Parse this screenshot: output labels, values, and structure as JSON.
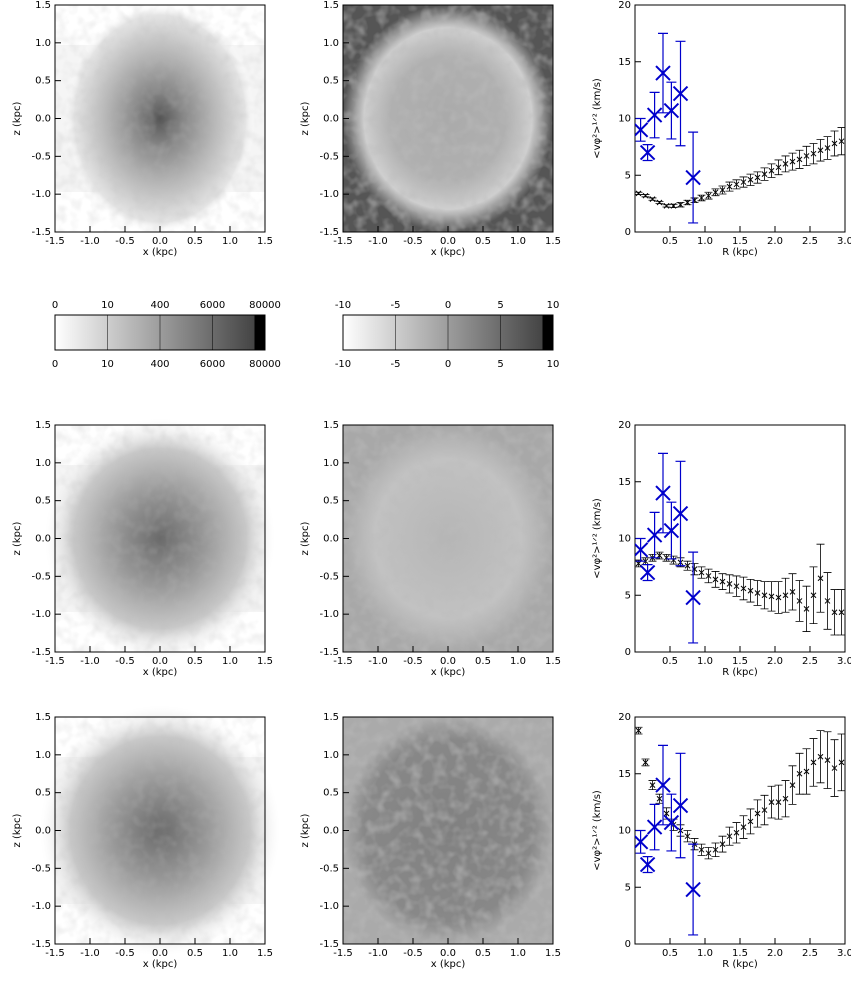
{
  "chart_data": [
    {
      "type": "heatmap",
      "xlabel": "x (kpc)",
      "ylabel": "z (kpc)",
      "xlim": [
        -1.5,
        1.5
      ],
      "ylim": [
        -1.5,
        1.5
      ],
      "xticks": [
        {
          "value": -1.5,
          "label": "-1.5"
        },
        {
          "value": -1,
          "label": "-1.0"
        },
        {
          "value": -0.5,
          "label": "-0.5"
        },
        {
          "value": 0,
          "label": "0.0"
        },
        {
          "value": 0.5,
          "label": "0.5"
        },
        {
          "value": 1,
          "label": "1.0"
        },
        {
          "value": 1.5,
          "label": "1.5"
        }
      ],
      "yticks": [
        {
          "value": -1.5,
          "label": "-1.5"
        },
        {
          "value": -1,
          "label": "-1.0"
        },
        {
          "value": -0.5,
          "label": "-0.5"
        },
        {
          "value": 0,
          "label": "0.0"
        },
        {
          "value": 0.5,
          "label": "0.5"
        },
        {
          "value": 1,
          "label": "1.0"
        },
        {
          "value": 1.5,
          "label": "1.5"
        }
      ]
    },
    {
      "type": "heatmap",
      "xlabel": "x (kpc)",
      "ylabel": "z (kpc)",
      "xlim": [
        -1.5,
        1.5
      ],
      "ylim": [
        -1.5,
        1.5
      ],
      "xticks": [
        {
          "value": -1.5,
          "label": "-1.5"
        },
        {
          "value": -1,
          "label": "-1.0"
        },
        {
          "value": -0.5,
          "label": "-0.5"
        },
        {
          "value": 0,
          "label": "0.0"
        },
        {
          "value": 0.5,
          "label": "0.5"
        },
        {
          "value": 1,
          "label": "1.0"
        },
        {
          "value": 1.5,
          "label": "1.5"
        }
      ],
      "yticks": [
        {
          "value": -1.5,
          "label": "-1.5"
        },
        {
          "value": -1,
          "label": "-1.0"
        },
        {
          "value": -0.5,
          "label": "-0.5"
        },
        {
          "value": 0,
          "label": "0.0"
        },
        {
          "value": 0.5,
          "label": "0.5"
        },
        {
          "value": 1,
          "label": "1.0"
        },
        {
          "value": 1.5,
          "label": "1.5"
        }
      ]
    },
    {
      "type": "errorbar",
      "xlabel": "R (kpc)",
      "ylabel": "<vφ²>¹ᐟ² (km/s)",
      "xlim": [
        0,
        3
      ],
      "ylim": [
        0,
        20
      ],
      "xticks": [
        {
          "value": 0.5,
          "label": "0.5"
        },
        {
          "value": 1,
          "label": "1.0"
        },
        {
          "value": 1.5,
          "label": "1.5"
        },
        {
          "value": 2,
          "label": "2.0"
        },
        {
          "value": 2.5,
          "label": "2.5"
        },
        {
          "value": 3,
          "label": "3.0"
        }
      ],
      "yticks": [
        0,
        5,
        10,
        15,
        20
      ],
      "series": [
        {
          "color": "#000000",
          "x": [
            0.05,
            0.15,
            0.25,
            0.35,
            0.45,
            0.55,
            0.65,
            0.75,
            0.85,
            0.95,
            1.05,
            1.15,
            1.25,
            1.35,
            1.45,
            1.55,
            1.65,
            1.75,
            1.85,
            1.95,
            2.05,
            2.15,
            2.25,
            2.35,
            2.45,
            2.55,
            2.65,
            2.75,
            2.85,
            2.95
          ],
          "values": [
            3.4,
            3.2,
            2.9,
            2.6,
            2.3,
            2.3,
            2.4,
            2.6,
            2.8,
            3.0,
            3.2,
            3.5,
            3.7,
            4.0,
            4.2,
            4.4,
            4.6,
            4.8,
            5.1,
            5.4,
            5.7,
            6.0,
            6.2,
            6.4,
            6.7,
            6.9,
            7.2,
            7.4,
            7.8,
            8.0
          ],
          "errors": [
            0.1,
            0.1,
            0.1,
            0.1,
            0.1,
            0.15,
            0.2,
            0.2,
            0.2,
            0.25,
            0.3,
            0.3,
            0.35,
            0.4,
            0.4,
            0.45,
            0.5,
            0.5,
            0.55,
            0.6,
            0.65,
            0.7,
            0.75,
            0.8,
            0.85,
            0.9,
            0.95,
            1.0,
            1.1,
            1.2
          ]
        },
        {
          "color": "#0000cc",
          "x": [
            0.08,
            0.18,
            0.28,
            0.4,
            0.52,
            0.65,
            0.83
          ],
          "values": [
            9,
            7,
            10.3,
            14,
            10.7,
            12.2,
            4.8
          ],
          "errors": [
            1,
            0.7,
            2,
            3.5,
            2.5,
            4.6,
            4
          ]
        }
      ]
    },
    {
      "type": "colorbar",
      "ticks": [
        0,
        10,
        400,
        6000,
        80000
      ]
    },
    {
      "type": "colorbar",
      "ticks": [
        -10,
        -5,
        0,
        5,
        10
      ]
    },
    {
      "type": "heatmap",
      "xlabel": "x (kpc)",
      "ylabel": "z (kpc)",
      "xlim": [
        -1.5,
        1.5
      ],
      "ylim": [
        -1.5,
        1.5
      ],
      "xticks": [
        {
          "value": -1.5,
          "label": "-1.5"
        },
        {
          "value": -1,
          "label": "-1.0"
        },
        {
          "value": -0.5,
          "label": "-0.5"
        },
        {
          "value": 0,
          "label": "0.0"
        },
        {
          "value": 0.5,
          "label": "0.5"
        },
        {
          "value": 1,
          "label": "1.0"
        },
        {
          "value": 1.5,
          "label": "1.5"
        }
      ],
      "yticks": [
        {
          "value": -1.5,
          "label": "-1.5"
        },
        {
          "value": -1,
          "label": "-1.0"
        },
        {
          "value": -0.5,
          "label": "-0.5"
        },
        {
          "value": 0,
          "label": "0.0"
        },
        {
          "value": 0.5,
          "label": "0.5"
        },
        {
          "value": 1,
          "label": "1.0"
        },
        {
          "value": 1.5,
          "label": "1.5"
        }
      ]
    },
    {
      "type": "heatmap",
      "xlabel": "x (kpc)",
      "ylabel": "z (kpc)",
      "xlim": [
        -1.5,
        1.5
      ],
      "ylim": [
        -1.5,
        1.5
      ],
      "xticks": [
        {
          "value": -1.5,
          "label": "-1.5"
        },
        {
          "value": -1,
          "label": "-1.0"
        },
        {
          "value": -0.5,
          "label": "-0.5"
        },
        {
          "value": 0,
          "label": "0.0"
        },
        {
          "value": 0.5,
          "label": "0.5"
        },
        {
          "value": 1,
          "label": "1.0"
        },
        {
          "value": 1.5,
          "label": "1.5"
        }
      ],
      "yticks": [
        {
          "value": -1.5,
          "label": "-1.5"
        },
        {
          "value": -1,
          "label": "-1.0"
        },
        {
          "value": -0.5,
          "label": "-0.5"
        },
        {
          "value": 0,
          "label": "0.0"
        },
        {
          "value": 0.5,
          "label": "0.5"
        },
        {
          "value": 1,
          "label": "1.0"
        },
        {
          "value": 1.5,
          "label": "1.5"
        }
      ]
    },
    {
      "type": "errorbar",
      "xlabel": "R (kpc)",
      "ylabel": "<vφ²>¹ᐟ² (km/s)",
      "xlim": [
        0,
        3
      ],
      "ylim": [
        0,
        20
      ],
      "xticks": [
        {
          "value": 0.5,
          "label": "0.5"
        },
        {
          "value": 1,
          "label": "1.0"
        },
        {
          "value": 1.5,
          "label": "1.5"
        },
        {
          "value": 2,
          "label": "2.0"
        },
        {
          "value": 2.5,
          "label": "2.5"
        },
        {
          "value": 3,
          "label": "3.0"
        }
      ],
      "yticks": [
        0,
        5,
        10,
        15,
        20
      ],
      "series": [
        {
          "color": "#000000",
          "x": [
            0.05,
            0.15,
            0.25,
            0.35,
            0.45,
            0.55,
            0.65,
            0.75,
            0.85,
            0.95,
            1.05,
            1.15,
            1.25,
            1.35,
            1.45,
            1.55,
            1.65,
            1.75,
            1.85,
            1.95,
            2.05,
            2.15,
            2.25,
            2.35,
            2.45,
            2.55,
            2.65,
            2.75,
            2.85,
            2.95
          ],
          "values": [
            7.8,
            8.0,
            8.3,
            8.5,
            8.3,
            8.1,
            7.9,
            7.6,
            7.3,
            7.0,
            6.7,
            6.4,
            6.2,
            6.0,
            5.8,
            5.6,
            5.4,
            5.2,
            5.0,
            4.9,
            4.8,
            5.0,
            5.3,
            4.5,
            3.8,
            5.0,
            6.5,
            4.5,
            3.5,
            3.5
          ],
          "errors": [
            0.3,
            0.3,
            0.3,
            0.3,
            0.3,
            0.35,
            0.4,
            0.4,
            0.5,
            0.5,
            0.6,
            0.7,
            0.7,
            0.8,
            0.9,
            1.0,
            1.0,
            1.1,
            1.2,
            1.3,
            1.4,
            1.5,
            1.6,
            1.8,
            2.0,
            2.5,
            3.0,
            2.5,
            2.0,
            2.0
          ]
        },
        {
          "color": "#0000cc",
          "x": [
            0.08,
            0.18,
            0.28,
            0.4,
            0.52,
            0.65,
            0.83
          ],
          "values": [
            9,
            7,
            10.3,
            14,
            10.7,
            12.2,
            4.8
          ],
          "errors": [
            1,
            0.7,
            2,
            3.5,
            2.5,
            4.6,
            4
          ]
        }
      ]
    },
    {
      "type": "heatmap",
      "xlabel": "x (kpc)",
      "ylabel": "z (kpc)",
      "xlim": [
        -1.5,
        1.5
      ],
      "ylim": [
        -1.5,
        1.5
      ],
      "xticks": [
        {
          "value": -1.5,
          "label": "-1.5"
        },
        {
          "value": -1,
          "label": "-1.0"
        },
        {
          "value": -0.5,
          "label": "-0.5"
        },
        {
          "value": 0,
          "label": "0.0"
        },
        {
          "value": 0.5,
          "label": "0.5"
        },
        {
          "value": 1,
          "label": "1.0"
        },
        {
          "value": 1.5,
          "label": "1.5"
        }
      ],
      "yticks": [
        {
          "value": -1.5,
          "label": "-1.5"
        },
        {
          "value": -1,
          "label": "-1.0"
        },
        {
          "value": -0.5,
          "label": "-0.5"
        },
        {
          "value": 0,
          "label": "0.0"
        },
        {
          "value": 0.5,
          "label": "0.5"
        },
        {
          "value": 1,
          "label": "1.0"
        },
        {
          "value": 1.5,
          "label": "1.5"
        }
      ]
    },
    {
      "type": "heatmap",
      "xlabel": "x (kpc)",
      "ylabel": "z (kpc)",
      "xlim": [
        -1.5,
        1.5
      ],
      "ylim": [
        -1.5,
        1.5
      ],
      "xticks": [
        {
          "value": -1.5,
          "label": "-1.5"
        },
        {
          "value": -1,
          "label": "-1.0"
        },
        {
          "value": -0.5,
          "label": "-0.5"
        },
        {
          "value": 0,
          "label": "0.0"
        },
        {
          "value": 0.5,
          "label": "0.5"
        },
        {
          "value": 1,
          "label": "1.0"
        },
        {
          "value": 1.5,
          "label": "1.5"
        }
      ],
      "yticks": [
        {
          "value": -1.5,
          "label": "-1.5"
        },
        {
          "value": -1,
          "label": "-1.0"
        },
        {
          "value": -0.5,
          "label": "-0.5"
        },
        {
          "value": 0,
          "label": "0.0"
        },
        {
          "value": 0.5,
          "label": "0.5"
        },
        {
          "value": 1,
          "label": "1.0"
        },
        {
          "value": 1.5,
          "label": "1.5"
        }
      ]
    },
    {
      "type": "errorbar",
      "xlabel": "R (kpc)",
      "ylabel": "<vφ²>¹ᐟ² (km/s)",
      "xlim": [
        0,
        3
      ],
      "ylim": [
        0,
        20
      ],
      "xticks": [
        {
          "value": 0.5,
          "label": "0.5"
        },
        {
          "value": 1,
          "label": "1.0"
        },
        {
          "value": 1.5,
          "label": "1.5"
        },
        {
          "value": 2,
          "label": "2.0"
        },
        {
          "value": 2.5,
          "label": "2.5"
        },
        {
          "value": 3,
          "label": "3.0"
        }
      ],
      "yticks": [
        0,
        5,
        10,
        15,
        20
      ],
      "series": [
        {
          "color": "#000000",
          "x": [
            0.05,
            0.15,
            0.25,
            0.35,
            0.45,
            0.55,
            0.65,
            0.75,
            0.85,
            0.95,
            1.05,
            1.15,
            1.25,
            1.35,
            1.45,
            1.55,
            1.65,
            1.75,
            1.85,
            1.95,
            2.05,
            2.15,
            2.25,
            2.35,
            2.45,
            2.55,
            2.65,
            2.75,
            2.85,
            2.95
          ],
          "values": [
            18.8,
            16,
            14,
            12.8,
            11.5,
            10.5,
            10,
            9.5,
            8.8,
            8.3,
            8,
            8.3,
            8.8,
            9.5,
            9.8,
            10.3,
            10.8,
            11.5,
            11.8,
            12.5,
            12.5,
            12.8,
            14,
            15,
            15.2,
            16,
            16.5,
            16.2,
            15.5,
            16
          ],
          "errors": [
            0.3,
            0.3,
            0.4,
            0.4,
            0.5,
            0.5,
            0.5,
            0.5,
            0.5,
            0.5,
            0.5,
            0.6,
            0.7,
            0.8,
            0.9,
            1.0,
            1.1,
            1.2,
            1.3,
            1.4,
            1.5,
            1.6,
            1.7,
            1.8,
            2.0,
            2.1,
            2.3,
            2.5,
            2.5,
            2.5
          ]
        },
        {
          "color": "#0000cc",
          "x": [
            0.08,
            0.18,
            0.28,
            0.4,
            0.52,
            0.65,
            0.83
          ],
          "values": [
            9,
            7,
            10.3,
            14,
            10.7,
            12.2,
            4.8
          ],
          "errors": [
            1,
            0.7,
            2,
            3.5,
            2.5,
            4.6,
            4
          ]
        }
      ]
    }
  ]
}
